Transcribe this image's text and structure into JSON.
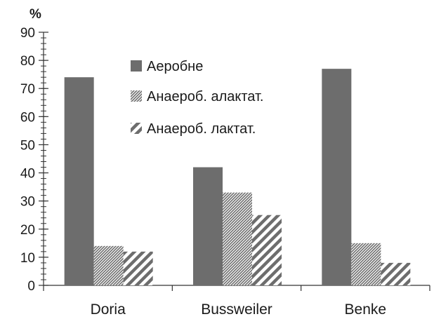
{
  "chart_data": {
    "type": "bar",
    "ylabel": "%",
    "ylim": [
      0,
      90
    ],
    "yticks": [
      0,
      10,
      20,
      30,
      40,
      50,
      60,
      70,
      80,
      90
    ],
    "categories": [
      "Doria",
      "Bussweiler",
      "Benke"
    ],
    "series": [
      {
        "name": "Аеробне",
        "values": [
          74,
          42,
          77
        ],
        "color": "#6d6d6d",
        "fill": "solid"
      },
      {
        "name": "Анаероб. алактат.",
        "values": [
          14,
          33,
          15
        ],
        "color": "#6d6d6d",
        "fill": "hatch-dense"
      },
      {
        "name": "Анаероб. лактат.",
        "values": [
          12,
          25,
          8
        ],
        "color": "#6d6d6d",
        "fill": "hatch-diagonal"
      }
    ],
    "legend_position": "top-center",
    "grid": false
  }
}
